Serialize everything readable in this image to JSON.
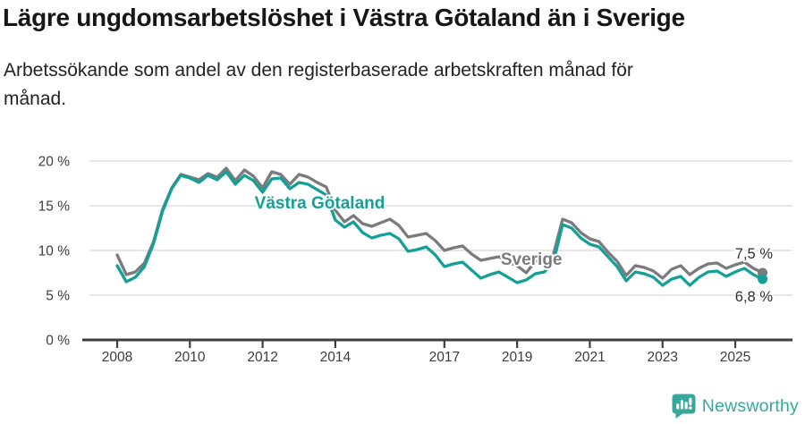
{
  "page": {
    "background": "#ffffff"
  },
  "header": {
    "title": "Lägre ungdomsarbetslöshet i Västra Götaland än i Sverige",
    "subtitle": "Arbetssökande som andel av den registerbaserade arbetskraften månad för månad."
  },
  "branding": {
    "name": "Newsworthy",
    "icon": "newsworthy-speech-bubble-bar-chart-icon",
    "color": "#38a79c"
  },
  "colors": {
    "vastra_gotaland": "#14a096",
    "sverige": "#7a7b7e",
    "grid": "#dedede",
    "axis": "#3f3f3f",
    "tick_text": "#3c3c3c",
    "title_text": "#161616"
  },
  "chart_data": {
    "type": "line",
    "unit": "percent of register-based labour force",
    "x_cadence": "quarterly estimates of monthly series",
    "x_start": 2008.0,
    "x_step": 0.25,
    "xlim": [
      2007.25,
      2026.55
    ],
    "ylim": [
      0,
      20
    ],
    "grid": "horizontal",
    "legend_position": "inline-annotations",
    "x_tick_years": [
      2008,
      2010,
      2012,
      2014,
      2017,
      2019,
      2021,
      2023,
      2025
    ],
    "x_tick_labels": [
      "2008",
      "2010",
      "2012",
      "2014",
      "2017",
      "2019",
      "2021",
      "2023",
      "2025"
    ],
    "y_ticks": [
      0,
      5,
      10,
      15,
      20
    ],
    "y_tick_labels": [
      "0 %",
      "5 %",
      "10 %",
      "15 %",
      "20 %"
    ],
    "series": [
      {
        "name": "Sverige",
        "color": "#7a7b7e",
        "end_label": "7,5 %",
        "end_value": 7.5,
        "values": [
          9.5,
          7.3,
          7.6,
          8.6,
          11.0,
          14.6,
          17.0,
          18.5,
          18.2,
          17.9,
          18.6,
          18.2,
          19.2,
          17.8,
          19.0,
          18.3,
          17.0,
          18.8,
          18.5,
          17.4,
          18.5,
          18.2,
          17.6,
          17.1,
          14.5,
          13.2,
          13.9,
          13.0,
          12.7,
          13.1,
          13.5,
          12.8,
          11.5,
          11.7,
          11.9,
          11.1,
          10.0,
          10.3,
          10.5,
          9.6,
          8.9,
          9.1,
          9.3,
          8.7,
          8.3,
          7.5,
          8.8,
          8.9,
          9.6,
          13.5,
          13.1,
          12.0,
          11.3,
          11.0,
          9.8,
          8.8,
          7.2,
          8.3,
          8.1,
          7.7,
          6.9,
          7.9,
          8.3,
          7.3,
          8.0,
          8.5,
          8.6,
          8.0,
          8.4,
          8.7,
          8.0,
          7.5
        ]
      },
      {
        "name": "Västra Götaland",
        "color": "#14a096",
        "end_label": "6,8 %",
        "end_value": 6.8,
        "values": [
          8.3,
          6.5,
          7.0,
          8.2,
          10.8,
          14.4,
          16.9,
          18.4,
          18.1,
          17.6,
          18.4,
          17.9,
          18.8,
          17.4,
          18.4,
          17.8,
          16.5,
          18.0,
          18.1,
          16.9,
          17.6,
          17.4,
          16.8,
          16.2,
          13.4,
          12.6,
          13.2,
          12.0,
          11.4,
          11.7,
          11.9,
          11.3,
          9.9,
          10.1,
          10.4,
          9.5,
          8.2,
          8.5,
          8.7,
          7.8,
          6.9,
          7.3,
          7.6,
          7.0,
          6.4,
          6.7,
          7.4,
          7.6,
          8.7,
          12.9,
          12.5,
          11.4,
          10.7,
          10.4,
          9.3,
          8.2,
          6.6,
          7.6,
          7.4,
          7.0,
          6.1,
          6.8,
          7.1,
          6.1,
          7.0,
          7.6,
          7.7,
          7.1,
          7.6,
          8.0,
          7.3,
          6.8
        ]
      }
    ],
    "annotations": [
      {
        "label": "Västra Götaland",
        "year": 2011.78,
        "value": 14.7,
        "color": "#14a096"
      },
      {
        "label": "Sverige",
        "year": 2018.55,
        "value": 8.4,
        "color": "#7a7b7e"
      }
    ]
  }
}
